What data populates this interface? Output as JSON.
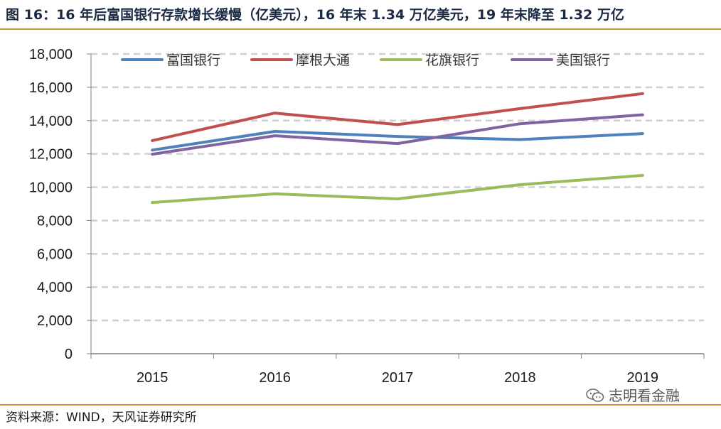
{
  "header": {
    "figure_title": "图 16：16 年后富国银行存款增长缓慢（亿美元），16 年末 1.34 万亿美元，19 年末降至 1.32 万亿"
  },
  "footer": {
    "source": "资料来源：WIND，天风证券研究所",
    "watermark": "志明看金融",
    "watermark_icon": "wechat-icon"
  },
  "chart_data": {
    "type": "line",
    "title": "",
    "xlabel": "",
    "ylabel": "",
    "categories": [
      "2015",
      "2016",
      "2017",
      "2018",
      "2019"
    ],
    "ylim": [
      0,
      18000
    ],
    "yticks": [
      0,
      2000,
      4000,
      6000,
      8000,
      10000,
      12000,
      14000,
      16000,
      18000
    ],
    "ytick_labels": [
      "0",
      "2,000",
      "4,000",
      "6,000",
      "8,000",
      "10,000",
      "12,000",
      "14,000",
      "16,000",
      "18,000"
    ],
    "grid": true,
    "legend_position": "top",
    "series": [
      {
        "name": "富国银行",
        "color": "#4f81bd",
        "values": [
          12230,
          13350,
          13050,
          12860,
          13220
        ]
      },
      {
        "name": "摩根大通",
        "color": "#c0504d",
        "values": [
          12800,
          14450,
          13760,
          14720,
          15620
        ]
      },
      {
        "name": "花旗银行",
        "color": "#9bbb59",
        "values": [
          9080,
          9600,
          9300,
          10150,
          10710
        ]
      },
      {
        "name": "美国银行",
        "color": "#8064a2",
        "values": [
          11980,
          13090,
          12620,
          13810,
          14350
        ]
      }
    ]
  }
}
